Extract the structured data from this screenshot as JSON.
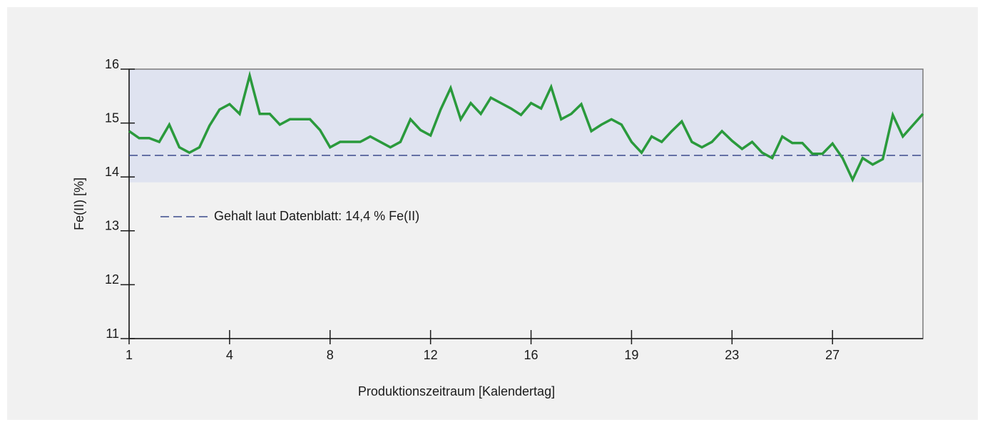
{
  "chart_data": {
    "type": "line",
    "xlabel": "Produktionszeitraum [Kalendertag]",
    "ylabel": "Fe(II) [%]",
    "x": [
      0,
      1,
      2,
      3,
      4,
      5,
      6,
      7,
      8,
      9,
      10,
      11,
      12,
      13,
      14,
      15,
      16,
      17,
      18,
      19,
      20,
      21,
      22,
      23,
      24,
      25,
      26,
      27,
      28,
      29,
      30,
      31,
      32,
      33,
      34,
      35,
      36,
      37,
      38,
      39,
      40,
      41,
      42,
      43,
      44,
      45,
      46,
      47,
      48,
      49,
      50,
      51,
      52,
      53,
      54,
      55,
      56,
      57,
      58,
      59,
      60,
      61,
      62,
      63,
      64,
      65,
      66,
      67,
      68,
      69,
      70,
      71,
      72,
      73,
      74,
      75,
      76,
      77,
      79
    ],
    "series": [
      {
        "color": "#2a9a3c",
        "values": [
          14.85,
          14.72,
          14.72,
          14.65,
          14.97,
          14.55,
          14.45,
          14.55,
          14.95,
          15.25,
          15.35,
          15.17,
          15.88,
          15.17,
          15.17,
          14.97,
          15.07,
          15.07,
          15.07,
          14.87,
          14.55,
          14.65,
          14.65,
          14.65,
          14.75,
          14.65,
          14.55,
          14.65,
          15.07,
          14.87,
          14.77,
          15.25,
          15.65,
          15.07,
          15.37,
          15.17,
          15.47,
          15.37,
          15.27,
          15.15,
          15.37,
          15.27,
          15.67,
          15.07,
          15.17,
          15.35,
          14.85,
          14.97,
          15.07,
          14.97,
          14.65,
          14.45,
          14.75,
          14.65,
          14.85,
          15.03,
          14.65,
          14.55,
          14.65,
          14.85,
          14.67,
          14.52,
          14.65,
          14.45,
          14.35,
          14.75,
          14.63,
          14.63,
          14.43,
          14.43,
          14.62,
          14.35,
          13.95,
          14.35,
          14.23,
          14.33,
          15.15,
          14.75,
          15.17
        ]
      }
    ],
    "reference": {
      "label": "Gehalt laut Datenblatt: 14,4 % Fe(II)",
      "value": 14.4,
      "color": "#3b4a8c"
    },
    "band": {
      "range": [
        13.9,
        16
      ],
      "color": "#dfe3f0"
    },
    "xlim": [
      0,
      79
    ],
    "xticks": [
      {
        "value": 0,
        "label": "1"
      },
      {
        "value": 10,
        "label": "4"
      },
      {
        "value": 20,
        "label": "8"
      },
      {
        "value": 30,
        "label": "12"
      },
      {
        "value": 40,
        "label": "16"
      },
      {
        "value": 50,
        "label": "19"
      },
      {
        "value": 60,
        "label": "23"
      },
      {
        "value": 70,
        "label": "27"
      }
    ],
    "ylim": [
      11,
      16
    ],
    "yticks": [
      11,
      12,
      13,
      14,
      15,
      16
    ],
    "grid": false
  }
}
